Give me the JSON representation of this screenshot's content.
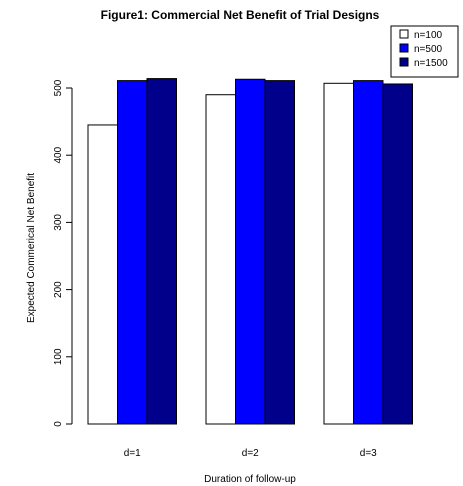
{
  "chart_data": {
    "type": "bar",
    "title": "Figure1: Commercial Net Benefit of Trial Designs",
    "xlabel": "Duration of follow-up",
    "ylabel": "Expected Commerical Net Benefit",
    "categories": [
      "d=1",
      "d=2",
      "d=3"
    ],
    "series": [
      {
        "name": "n=100",
        "values": [
          445,
          490,
          507
        ],
        "color": "#ffffff"
      },
      {
        "name": "n=500",
        "values": [
          511,
          513,
          511
        ],
        "color": "#0000ff"
      },
      {
        "name": "n=1500",
        "values": [
          514,
          511,
          506
        ],
        "color": "#00008b"
      }
    ],
    "y_ticks": [
      "0",
      "100",
      "200",
      "300",
      "400",
      "500"
    ],
    "ylim": [
      0,
      520
    ],
    "grid": false,
    "legend_position": "top-right"
  }
}
